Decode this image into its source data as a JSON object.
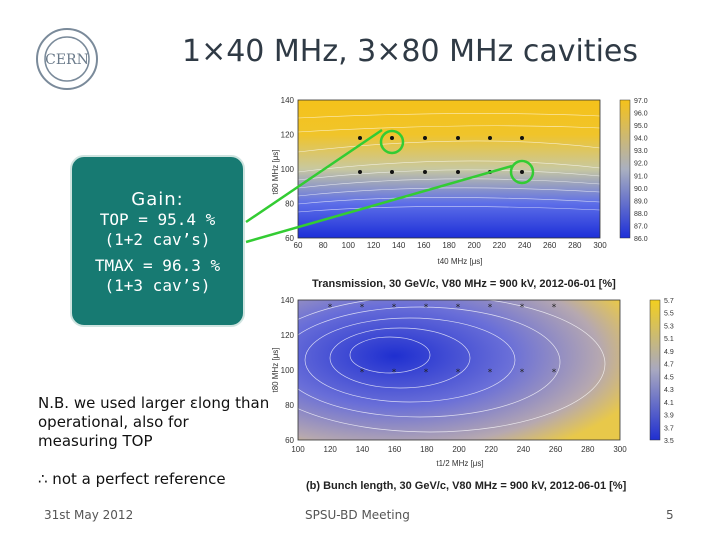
{
  "slide": {
    "title": "1×40 MHz, 3×80 MHz cavities",
    "logo_text": "CERN"
  },
  "gain_box": {
    "title": "Gain:",
    "line1": "TOP = 95.4 %",
    "line2": "(1+2 cav’s)",
    "line3": "TMAX = 96.3 %",
    "line4": "(1+3 cav’s)"
  },
  "note": {
    "text1": "N.B. we used larger εlong than operational, also for measuring TOP",
    "text2": "∴ not a perfect reference"
  },
  "plot_a": {
    "caption": "Transmission, 30 GeV/c, V80 MHz = 900 kV, 2012-06-01 [%]",
    "x_ticks": [
      "60",
      "80",
      "100",
      "120",
      "140",
      "160",
      "180",
      "200",
      "220",
      "240",
      "260",
      "280",
      "300"
    ],
    "y_ticks": [
      "60",
      "80",
      "100",
      "120",
      "140"
    ],
    "x_label": "t40 MHz [μs]",
    "y_label": "t80 MHz [μs]",
    "colorbar": [
      "97.0",
      "96.0",
      "95.0",
      "94.0",
      "93.0",
      "92.0",
      "91.0",
      "90.0",
      "89.0",
      "88.0",
      "87.0",
      "86.0"
    ],
    "color_low": "#1d2fd8",
    "color_high": "#f5c21a"
  },
  "plot_b": {
    "caption": "(b) Bunch length, 30 GeV/c, V80 MHz = 900 kV, 2012-06-01 [%]",
    "x_ticks": [
      "100",
      "120",
      "140",
      "160",
      "180",
      "200",
      "220",
      "240",
      "260",
      "280",
      "300"
    ],
    "y_ticks": [
      "60",
      "80",
      "100",
      "120",
      "140"
    ],
    "x_label": "t1/2 MHz [μs]",
    "y_label": "t80 MHz [μs]",
    "colorbar": [
      "5.7",
      "5.5",
      "5.3",
      "5.1",
      "4.9",
      "4.7",
      "4.5",
      "4.3",
      "4.1",
      "3.9",
      "3.7",
      "3.5"
    ],
    "color_low": "#1f2fd0",
    "color_high": "#f2cf1f"
  },
  "footer": {
    "date": "31st May 2012",
    "meeting": "SPSU-BD Meeting",
    "page": "5"
  },
  "arrow_color": "#33cc33"
}
